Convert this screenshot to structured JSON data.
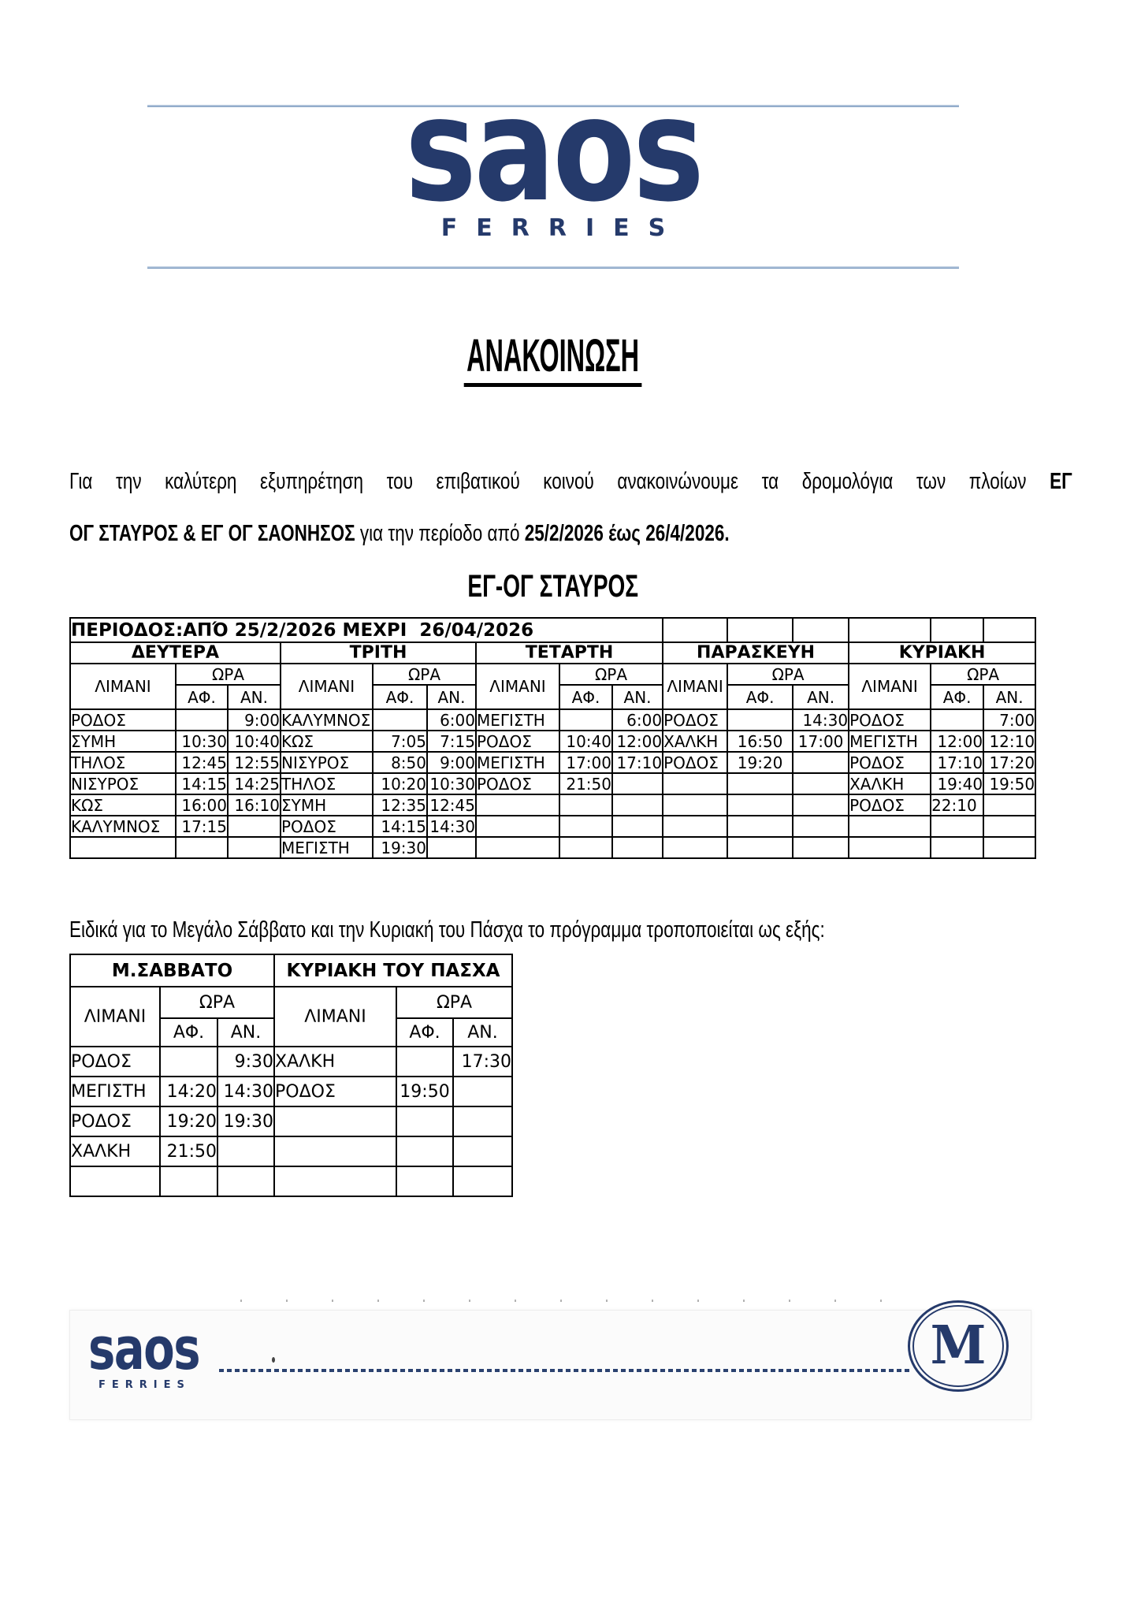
{
  "brand": {
    "name": "saos",
    "sub": "FERRIES"
  },
  "announcement_title": "ΑΝΑΚΟΙΝΩΣΗ",
  "intro": {
    "line1": [
      {
        "text": "Για την καλύτερη εξυπηρέτηση του επιβατικού κοινού ανακοινώνουμε τα δρομολόγια των πλοίων ",
        "bold": false
      },
      {
        "text": "ΕΓ",
        "bold": true
      }
    ],
    "line2": [
      {
        "text": "ΟΓ ΣΤΑΥΡΟΣ & ΕΓ ΟΓ ΣΑΟΝΗΣΟΣ",
        "bold": true
      },
      {
        "text": " για την περίοδο από ",
        "bold": false
      },
      {
        "text": "25/2/2026 έως 26/4/2026.",
        "bold": true
      }
    ]
  },
  "stavros": {
    "title": "ΕΓ-ΟΓ ΣΤΑΥΡΟΣ",
    "period_label": "ΠΕΡΙΟΔΟΣ:ΑΠΌ 25/2/2026 ΜΕΧΡΙ  26/04/2026",
    "headers": {
      "port": "ΛΙΜΑΝΙ",
      "time": "ΩΡΑ",
      "arrive": "ΑΦ.",
      "depart": "ΑΝ."
    },
    "days": [
      "ΔΕΥΤΕΡΑ",
      "ΤΡΙΤΗ",
      "ΤΕΤΑΡΤΗ",
      "ΠΑΡΑΣΚΕΥΗ",
      "ΚΥΡΙΑΚΗ"
    ],
    "rows": [
      [
        [
          "ΡΟΔΟΣ",
          "",
          "9:00"
        ],
        [
          "ΚΑΛΥΜΝΟΣ",
          "",
          "6:00"
        ],
        [
          "ΜΕΓΙΣΤΗ",
          "",
          "6:00"
        ],
        [
          "ΡΟΔΟΣ",
          "",
          "14:30"
        ],
        [
          "ΡΟΔΟΣ",
          "",
          "7:00"
        ]
      ],
      [
        [
          "ΣΥΜΗ",
          "10:30",
          "10:40"
        ],
        [
          "ΚΩΣ",
          "7:05",
          "7:15"
        ],
        [
          "ΡΟΔΟΣ",
          "10:40",
          "12:00"
        ],
        [
          "ΧΑΛΚΗ",
          "16:50",
          "17:00"
        ],
        [
          "ΜΕΓΙΣΤΗ",
          "12:00",
          "12:10"
        ]
      ],
      [
        [
          "ΤΗΛΟΣ",
          "12:45",
          "12:55"
        ],
        [
          "ΝΙΣΥΡΟΣ",
          "8:50",
          "9:00"
        ],
        [
          "ΜΕΓΙΣΤΗ",
          "17:00",
          "17:10"
        ],
        [
          "ΡΟΔΟΣ",
          "19:20",
          ""
        ],
        [
          "ΡΟΔΟΣ",
          "17:10",
          "17:20"
        ]
      ],
      [
        [
          "ΝΙΣΥΡΟΣ",
          "14:15",
          "14:25"
        ],
        [
          "ΤΗΛΟΣ",
          "10:20",
          "10:30"
        ],
        [
          "ΡΟΔΟΣ",
          "21:50",
          ""
        ],
        [
          "",
          "",
          ""
        ],
        [
          "ΧΑΛΚΗ",
          "19:40",
          "19:50"
        ]
      ],
      [
        [
          "ΚΩΣ",
          "16:00",
          "16:10"
        ],
        [
          "ΣΥΜΗ",
          "12:35",
          "12:45"
        ],
        [
          "",
          "",
          ""
        ],
        [
          "",
          "",
          ""
        ],
        [
          "ΡΟΔΟΣ",
          "22:10",
          ""
        ]
      ],
      [
        [
          "ΚΑΛΥΜΝΟΣ",
          "17:15",
          ""
        ],
        [
          "ΡΟΔΟΣ",
          "14:15",
          "14:30"
        ],
        [
          "",
          "",
          ""
        ],
        [
          "",
          "",
          ""
        ],
        [
          "",
          "",
          ""
        ]
      ],
      [
        [
          "",
          "",
          ""
        ],
        [
          "ΜΕΓΙΣΤΗ",
          "19:30",
          ""
        ],
        [
          "",
          "",
          ""
        ],
        [
          "",
          "",
          ""
        ],
        [
          "",
          "",
          ""
        ]
      ]
    ]
  },
  "easter_note": "Ειδικά για το Μεγάλο Σάββατο και την Κυριακή του Πάσχα το πρόγραμμα τροποποιείται ως εξής:",
  "easter": {
    "headers": {
      "port": "ΛΙΜΑΝΙ",
      "time": "ΩΡΑ",
      "arrive": "ΑΦ.",
      "depart": "ΑΝ."
    },
    "days": [
      "Μ.ΣΑΒΒΑΤΟ",
      "ΚΥΡΙΑΚΗ ΤΟΥ ΠΑΣΧΑ"
    ],
    "rows": [
      [
        [
          "ΡΟΔΟΣ",
          "",
          "9:30"
        ],
        [
          "ΧΑΛΚΗ",
          "",
          "17:30"
        ]
      ],
      [
        [
          "ΜΕΓΙΣΤΗ",
          "14:20",
          "14:30"
        ],
        [
          "ΡΟΔΟΣ",
          "19:50",
          ""
        ]
      ],
      [
        [
          "ΡΟΔΟΣ",
          "19:20",
          "19:30"
        ],
        [
          "",
          "",
          ""
        ]
      ],
      [
        [
          "ΧΑΛΚΗ",
          "21:50",
          ""
        ],
        [
          "",
          "",
          ""
        ]
      ],
      [
        [
          "",
          "",
          ""
        ],
        [
          "",
          "",
          ""
        ]
      ]
    ]
  },
  "footer": {
    "brand": "saos",
    "sub": "FERRIES",
    "monogram": "M"
  },
  "colors": {
    "brand_navy": "#253a6b",
    "rule_blue": "#8fa9c9",
    "grid_light": "#c9c9c9"
  }
}
